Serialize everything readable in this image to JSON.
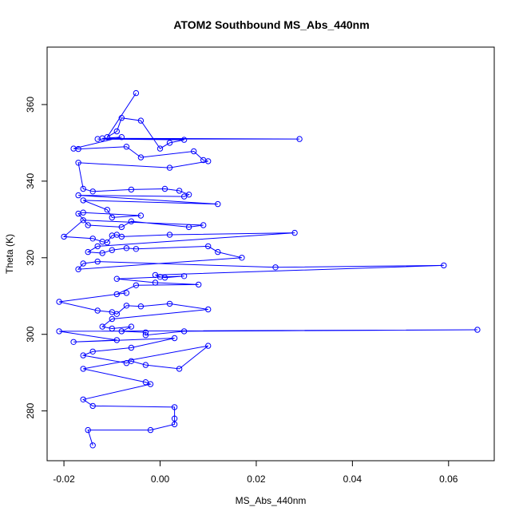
{
  "chart_data": {
    "type": "line",
    "title": "ATOM2 Southbound MS_Abs_440nm",
    "xlabel": "MS_Abs_440nm",
    "ylabel": "Theta (K)",
    "xlim": [
      -0.0235,
      0.0695
    ],
    "ylim": [
      267,
      375
    ],
    "x_ticks": [
      -0.02,
      0.0,
      0.02,
      0.04,
      0.06
    ],
    "x_tick_labels": [
      "-0.02",
      "0.00",
      "0.02",
      "0.04",
      "0.06"
    ],
    "y_ticks": [
      280,
      300,
      320,
      340,
      360
    ],
    "y_tick_labels": [
      "280",
      "300",
      "320",
      "340",
      "360"
    ],
    "grid": false,
    "series": [
      {
        "color": "#0000ff",
        "marker": "open-circle",
        "points": [
          [
            -0.005,
            363.0
          ],
          [
            -0.011,
            351.5
          ],
          [
            -0.009,
            353.0
          ],
          [
            -0.008,
            356.5
          ],
          [
            -0.004,
            355.8
          ],
          [
            0.0,
            348.5
          ],
          [
            0.002,
            350.0
          ],
          [
            0.005,
            350.8
          ],
          [
            -0.013,
            351.0
          ],
          [
            0.029,
            351.0
          ],
          [
            -0.012,
            351.2
          ],
          [
            -0.008,
            351.5
          ],
          [
            -0.018,
            348.5
          ],
          [
            -0.017,
            348.4
          ],
          [
            -0.007,
            349.0
          ],
          [
            -0.004,
            346.2
          ],
          [
            0.007,
            347.8
          ],
          [
            0.009,
            345.5
          ],
          [
            0.01,
            345.2
          ],
          [
            0.002,
            343.5
          ],
          [
            -0.017,
            344.8
          ],
          [
            -0.016,
            338.0
          ],
          [
            -0.014,
            337.3
          ],
          [
            -0.006,
            337.8
          ],
          [
            0.001,
            338.0
          ],
          [
            0.004,
            337.5
          ],
          [
            0.006,
            336.5
          ],
          [
            0.005,
            336.0
          ],
          [
            -0.017,
            336.3
          ],
          [
            0.012,
            334.0
          ],
          [
            -0.016,
            335.0
          ],
          [
            -0.011,
            332.5
          ],
          [
            -0.01,
            330.5
          ],
          [
            -0.004,
            331.0
          ],
          [
            -0.016,
            331.8
          ],
          [
            -0.017,
            331.5
          ],
          [
            -0.015,
            328.5
          ],
          [
            -0.008,
            328.0
          ],
          [
            -0.006,
            329.5
          ],
          [
            0.006,
            328.0
          ],
          [
            0.009,
            328.5
          ],
          [
            -0.016,
            329.8
          ],
          [
            -0.02,
            325.5
          ],
          [
            -0.014,
            325.0
          ],
          [
            -0.012,
            324.2
          ],
          [
            -0.011,
            324.0
          ],
          [
            -0.01,
            325.8
          ],
          [
            -0.009,
            326.0
          ],
          [
            -0.008,
            325.5
          ],
          [
            0.002,
            326.0
          ],
          [
            0.028,
            326.5
          ],
          [
            -0.013,
            323.0
          ],
          [
            -0.015,
            321.5
          ],
          [
            -0.012,
            321.2
          ],
          [
            -0.01,
            322.0
          ],
          [
            -0.007,
            322.5
          ],
          [
            -0.005,
            322.3
          ],
          [
            0.01,
            323.0
          ],
          [
            0.012,
            321.5
          ],
          [
            0.017,
            320.0
          ],
          [
            -0.017,
            317.0
          ],
          [
            -0.016,
            318.5
          ],
          [
            -0.013,
            319.0
          ],
          [
            0.024,
            317.5
          ],
          [
            0.059,
            318.0
          ],
          [
            -0.001,
            315.5
          ],
          [
            0.0,
            315.0
          ],
          [
            0.001,
            314.8
          ],
          [
            0.005,
            315.2
          ],
          [
            -0.009,
            314.5
          ],
          [
            -0.001,
            313.5
          ],
          [
            0.008,
            313.0
          ],
          [
            -0.005,
            312.8
          ],
          [
            -0.009,
            310.5
          ],
          [
            -0.007,
            310.8
          ],
          [
            -0.021,
            308.5
          ],
          [
            -0.013,
            306.2
          ],
          [
            -0.01,
            305.8
          ],
          [
            -0.009,
            305.3
          ],
          [
            -0.007,
            307.5
          ],
          [
            -0.004,
            307.3
          ],
          [
            0.002,
            308.0
          ],
          [
            0.01,
            306.5
          ],
          [
            -0.01,
            304.0
          ],
          [
            -0.012,
            302.0
          ],
          [
            -0.01,
            301.5
          ],
          [
            -0.006,
            302.0
          ],
          [
            -0.008,
            300.8
          ],
          [
            -0.003,
            300.5
          ],
          [
            -0.003,
            299.8
          ],
          [
            0.005,
            300.8
          ],
          [
            0.066,
            301.2
          ],
          [
            -0.021,
            300.8
          ],
          [
            -0.009,
            298.5
          ],
          [
            -0.018,
            298.0
          ],
          [
            0.003,
            299.0
          ],
          [
            -0.006,
            296.5
          ],
          [
            -0.014,
            295.5
          ],
          [
            -0.016,
            294.5
          ],
          [
            -0.007,
            292.5
          ],
          [
            -0.006,
            293.0
          ],
          [
            -0.003,
            292.0
          ],
          [
            0.004,
            291.0
          ],
          [
            0.01,
            297.0
          ],
          [
            -0.016,
            291.0
          ],
          [
            -0.003,
            287.5
          ],
          [
            -0.002,
            287.0
          ],
          [
            -0.016,
            283.0
          ],
          [
            -0.014,
            281.3
          ],
          [
            0.003,
            281.0
          ],
          [
            0.003,
            278.0
          ],
          [
            0.003,
            276.5
          ],
          [
            -0.002,
            275.0
          ],
          [
            -0.015,
            275.0
          ],
          [
            -0.014,
            271.0
          ]
        ]
      }
    ]
  }
}
